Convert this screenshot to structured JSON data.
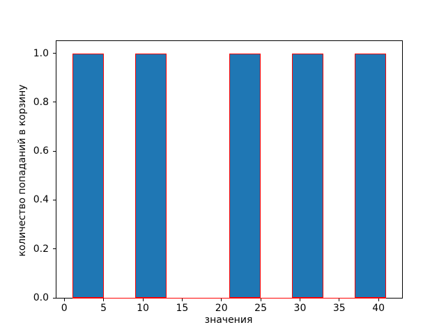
{
  "chart_data": {
    "type": "bar",
    "subtype": "histogram",
    "title": "",
    "xlabel": "значения",
    "ylabel": "количество попаданий в корзину",
    "bin_edges": [
      1,
      5,
      9,
      13,
      17,
      21,
      25,
      29,
      33,
      37,
      41
    ],
    "counts": [
      1,
      0,
      1,
      0,
      0,
      1,
      0,
      1,
      0,
      1
    ],
    "xlim": [
      -1,
      43
    ],
    "ylim": [
      0,
      1.05
    ],
    "xticks": [
      0,
      5,
      10,
      15,
      20,
      25,
      30,
      35,
      40
    ],
    "xtick_labels": [
      "0",
      "5",
      "10",
      "15",
      "20",
      "25",
      "30",
      "35",
      "40"
    ],
    "yticks": [
      0.0,
      0.2,
      0.4,
      0.6,
      0.8,
      1.0
    ],
    "ytick_labels": [
      "0.0",
      "0.2",
      "0.4",
      "0.6",
      "0.8",
      "1.0"
    ],
    "grid": false,
    "legend": null,
    "colors": {
      "bar_fill": "#1f77b4",
      "bar_edge": "#ff0000",
      "axis": "#000000",
      "background": "#ffffff"
    }
  }
}
